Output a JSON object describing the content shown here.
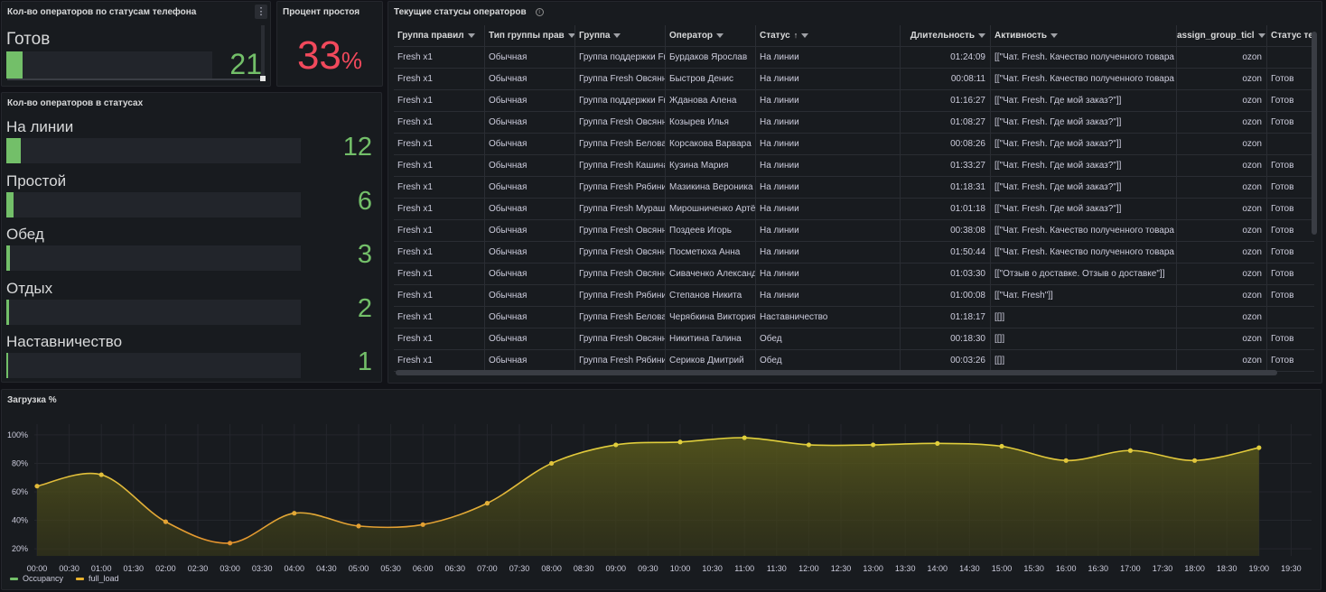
{
  "phone_panel": {
    "title": "Кол-во операторов по статусам телефона",
    "status_label": "Готов",
    "value": "21",
    "bar_fraction": 0.08,
    "menu_icon": "more-vertical-icon"
  },
  "idle_panel": {
    "title": "Процент простоя",
    "value": "33",
    "unit": "%",
    "color": "#f2495c"
  },
  "status_panel": {
    "title": "Кол-во операторов в статусах",
    "bar_color": "#73bf69",
    "items": [
      {
        "label": "На линии",
        "value": "12",
        "fraction": 0.05
      },
      {
        "label": "Простой",
        "value": "6",
        "fraction": 0.025
      },
      {
        "label": "Обед",
        "value": "3",
        "fraction": 0.012
      },
      {
        "label": "Отдых",
        "value": "2",
        "fraction": 0.008
      },
      {
        "label": "Наставничество",
        "value": "1",
        "fraction": 0.004
      }
    ]
  },
  "table_panel": {
    "title": "Текущие статусы операторов",
    "info_icon": "info-icon",
    "columns": [
      {
        "label": "Группа правил",
        "filter": true
      },
      {
        "label": "Тип группы прав",
        "filter": true
      },
      {
        "label": "Группа",
        "filter": true
      },
      {
        "label": "Оператор",
        "filter": true
      },
      {
        "label": "Статус",
        "filter": true,
        "sort": "↑"
      },
      {
        "label": "Длительность",
        "filter": true
      },
      {
        "label": "Активность",
        "filter": true
      },
      {
        "label": "assign_group_ticl",
        "filter": true
      },
      {
        "label": "Статус теле",
        "filter": false
      }
    ],
    "rows": [
      [
        "Fresh x1",
        "Обычная",
        "Группа поддержки Fresh",
        "Бурдаков Ярослав",
        "На линии",
        "01:24:09",
        "[[\"Чат. Fresh. Качество полученного товара",
        "ozon",
        ""
      ],
      [
        "Fresh x1",
        "Обычная",
        "Группа Fresh Овсянникова",
        "Быстров Денис",
        "На линии",
        "00:08:11",
        "[[\"Чат. Fresh. Качество полученного товара",
        "ozon",
        "Готов"
      ],
      [
        "Fresh x1",
        "Обычная",
        "Группа поддержки Fresh",
        "Жданова Алена",
        "На линии",
        "01:16:27",
        "[[\"Чат. Fresh. Где мой заказ?\"]]",
        "ozon",
        "Готов"
      ],
      [
        "Fresh x1",
        "Обычная",
        "Группа Fresh Овсянникова",
        "Козырев Илья",
        "На линии",
        "01:08:27",
        "[[\"Чат. Fresh. Где мой заказ?\"]]",
        "ozon",
        "Готов"
      ],
      [
        "Fresh x1",
        "Обычная",
        "Группа Fresh Белова",
        "Корсакова Варвара",
        "На линии",
        "00:08:26",
        "[[\"Чат. Fresh. Где мой заказ?\"]]",
        "ozon",
        ""
      ],
      [
        "Fresh x1",
        "Обычная",
        "Группа Fresh Кашина",
        "Кузина Мария",
        "На линии",
        "01:33:27",
        "[[\"Чат. Fresh. Где мой заказ?\"]]",
        "ozon",
        "Готов"
      ],
      [
        "Fresh x1",
        "Обычная",
        "Группа Fresh Рябинина",
        "Мазикина Вероника",
        "На линии",
        "01:18:31",
        "[[\"Чат. Fresh. Где мой заказ?\"]]",
        "ozon",
        "Готов"
      ],
      [
        "Fresh x1",
        "Обычная",
        "Группа Fresh Мурашова",
        "Мирошниченко Артём",
        "На линии",
        "01:01:18",
        "[[\"Чат. Fresh. Где мой заказ?\"]]",
        "ozon",
        "Готов"
      ],
      [
        "Fresh x1",
        "Обычная",
        "Группа Fresh Овсянникова",
        "Поздеев Игорь",
        "На линии",
        "00:38:08",
        "[[\"Чат. Fresh. Качество полученного товара",
        "ozon",
        "Готов"
      ],
      [
        "Fresh x1",
        "Обычная",
        "Группа Fresh Овсянникова",
        "Посметюха Анна",
        "На линии",
        "01:50:44",
        "[[\"Чат. Fresh. Качество полученного товара",
        "ozon",
        "Готов"
      ],
      [
        "Fresh x1",
        "Обычная",
        "Группа Fresh Овсянникова",
        "Сиваченко Александр",
        "На линии",
        "01:03:30",
        "[[\"Отзыв о доставке. Отзыв о доставке\"]]",
        "ozon",
        "Готов"
      ],
      [
        "Fresh x1",
        "Обычная",
        "Группа Fresh Рябинина",
        "Степанов Никита",
        "На линии",
        "01:00:08",
        "[[\"Чат. Fresh\"]]",
        "ozon",
        "Готов"
      ],
      [
        "Fresh x1",
        "Обычная",
        "Группа Fresh Белова",
        "Черябкина Виктория",
        "Наставничество",
        "01:18:17",
        "[[]]",
        "ozon",
        ""
      ],
      [
        "Fresh x1",
        "Обычная",
        "Группа Fresh Овсянникова",
        "Никитина Галина",
        "Обед",
        "00:18:30",
        "[[]]",
        "ozon",
        "Готов"
      ],
      [
        "Fresh x1",
        "Обычная",
        "Группа Fresh Рябинина",
        "Сериков Дмитрий",
        "Обед",
        "00:03:26",
        "[[]]",
        "ozon",
        "Готов"
      ]
    ]
  },
  "chart_panel": {
    "title": "Загрузка %",
    "chart_data": {
      "type": "area",
      "title": "Загрузка %",
      "xlabel": "",
      "ylabel": "",
      "x_ticks": [
        "00:00",
        "00:30",
        "01:00",
        "01:30",
        "02:00",
        "02:30",
        "03:00",
        "03:30",
        "04:00",
        "04:30",
        "05:00",
        "05:30",
        "06:00",
        "06:30",
        "07:00",
        "07:30",
        "08:00",
        "08:30",
        "09:00",
        "09:30",
        "10:00",
        "10:30",
        "11:00",
        "11:30",
        "12:00",
        "12:30",
        "13:00",
        "13:30",
        "14:00",
        "14:30",
        "15:00",
        "15:30",
        "16:00",
        "16:30",
        "17:00",
        "17:30",
        "18:00",
        "18:30",
        "19:00",
        "19:30"
      ],
      "y_ticks": [
        "20%",
        "40%",
        "60%",
        "80%",
        "100%"
      ],
      "ylim": [
        15,
        105
      ],
      "x_hours": [
        0,
        1,
        2,
        3,
        4,
        5,
        6,
        7,
        8,
        9,
        10,
        11,
        12,
        13,
        14,
        15,
        16,
        17,
        18,
        19
      ],
      "series": [
        {
          "name": "Occupancy",
          "color": "#73bf69",
          "values": []
        },
        {
          "name": "full_load",
          "color": "#e8b12c",
          "values": [
            64,
            72,
            39,
            24,
            45,
            36,
            37,
            52,
            80,
            93,
            95,
            98,
            93,
            93,
            94,
            92,
            82,
            89,
            82,
            91
          ]
        }
      ],
      "legend": "bottom-left",
      "grid": true
    }
  }
}
